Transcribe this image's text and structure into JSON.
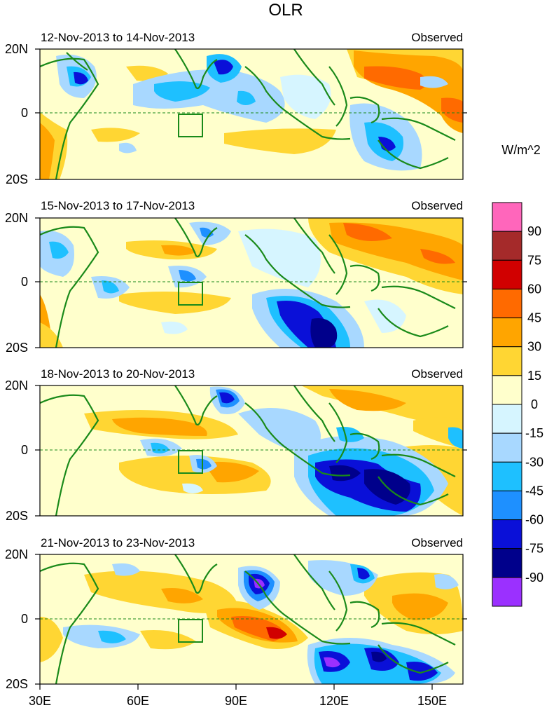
{
  "figure": {
    "title": "OLR",
    "units": "W/m^2"
  },
  "panels": [
    {
      "date_range": "12-Nov-2013 to 14-Nov-2013",
      "label": "Observed"
    },
    {
      "date_range": "15-Nov-2013 to 17-Nov-2013",
      "label": "Observed"
    },
    {
      "date_range": "18-Nov-2013 to 20-Nov-2013",
      "label": "Observed"
    },
    {
      "date_range": "21-Nov-2013 to 23-Nov-2013",
      "label": "Observed"
    }
  ],
  "axes": {
    "lat_labels": [
      "20N",
      "0",
      "20S"
    ],
    "lon_labels": [
      "30E",
      "60E",
      "90E",
      "120E",
      "150E"
    ]
  },
  "colorbar": {
    "colors": [
      "#ff66bb",
      "#a52a2a",
      "#d10000",
      "#ff6a00",
      "#ffa500",
      "#ffd633",
      "#ffffcc",
      "#d6f5ff",
      "#a8d8ff",
      "#1ec0ff",
      "#1e90ff",
      "#0a10d8",
      "#00008b",
      "#9b30ff"
    ],
    "labels": [
      "90",
      "75",
      "60",
      "45",
      "30",
      "15",
      "0",
      "-15",
      "-30",
      "-45",
      "-60",
      "-75",
      "-90"
    ]
  },
  "colors": {
    "coastline": "#1a8a1a",
    "equator": "#1a8a1a",
    "box": "#1a8a1a"
  }
}
